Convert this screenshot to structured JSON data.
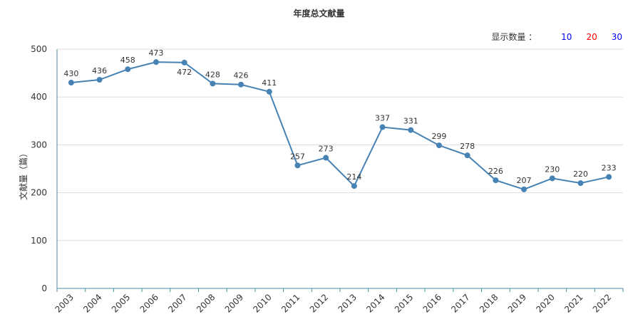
{
  "chart_title": "年度总文献量",
  "count_selector": {
    "label": "显示数量 ：",
    "options": [
      {
        "text": "10",
        "color": "#0000ff"
      },
      {
        "text": "20",
        "color": "#ff0000"
      },
      {
        "text": "30",
        "color": "#0000ff"
      }
    ]
  },
  "chart_data": {
    "type": "line",
    "title": "年度总文献量",
    "xlabel": "",
    "ylabel": "文献量（篇）",
    "ylim": [
      0,
      500
    ],
    "yticks": [
      0,
      100,
      200,
      300,
      400,
      500
    ],
    "categories": [
      "2003",
      "2004",
      "2005",
      "2006",
      "2007",
      "2008",
      "2009",
      "2010",
      "2011",
      "2012",
      "2013",
      "2014",
      "2015",
      "2016",
      "2017",
      "2018",
      "2019",
      "2020",
      "2021",
      "2022"
    ],
    "series": [
      {
        "values": [
          430,
          436,
          458,
          473,
          472,
          428,
          426,
          411,
          257,
          273,
          214,
          337,
          331,
          299,
          278,
          226,
          207,
          230,
          220,
          233
        ]
      }
    ],
    "grid": true,
    "line_color": "#4682b4"
  }
}
